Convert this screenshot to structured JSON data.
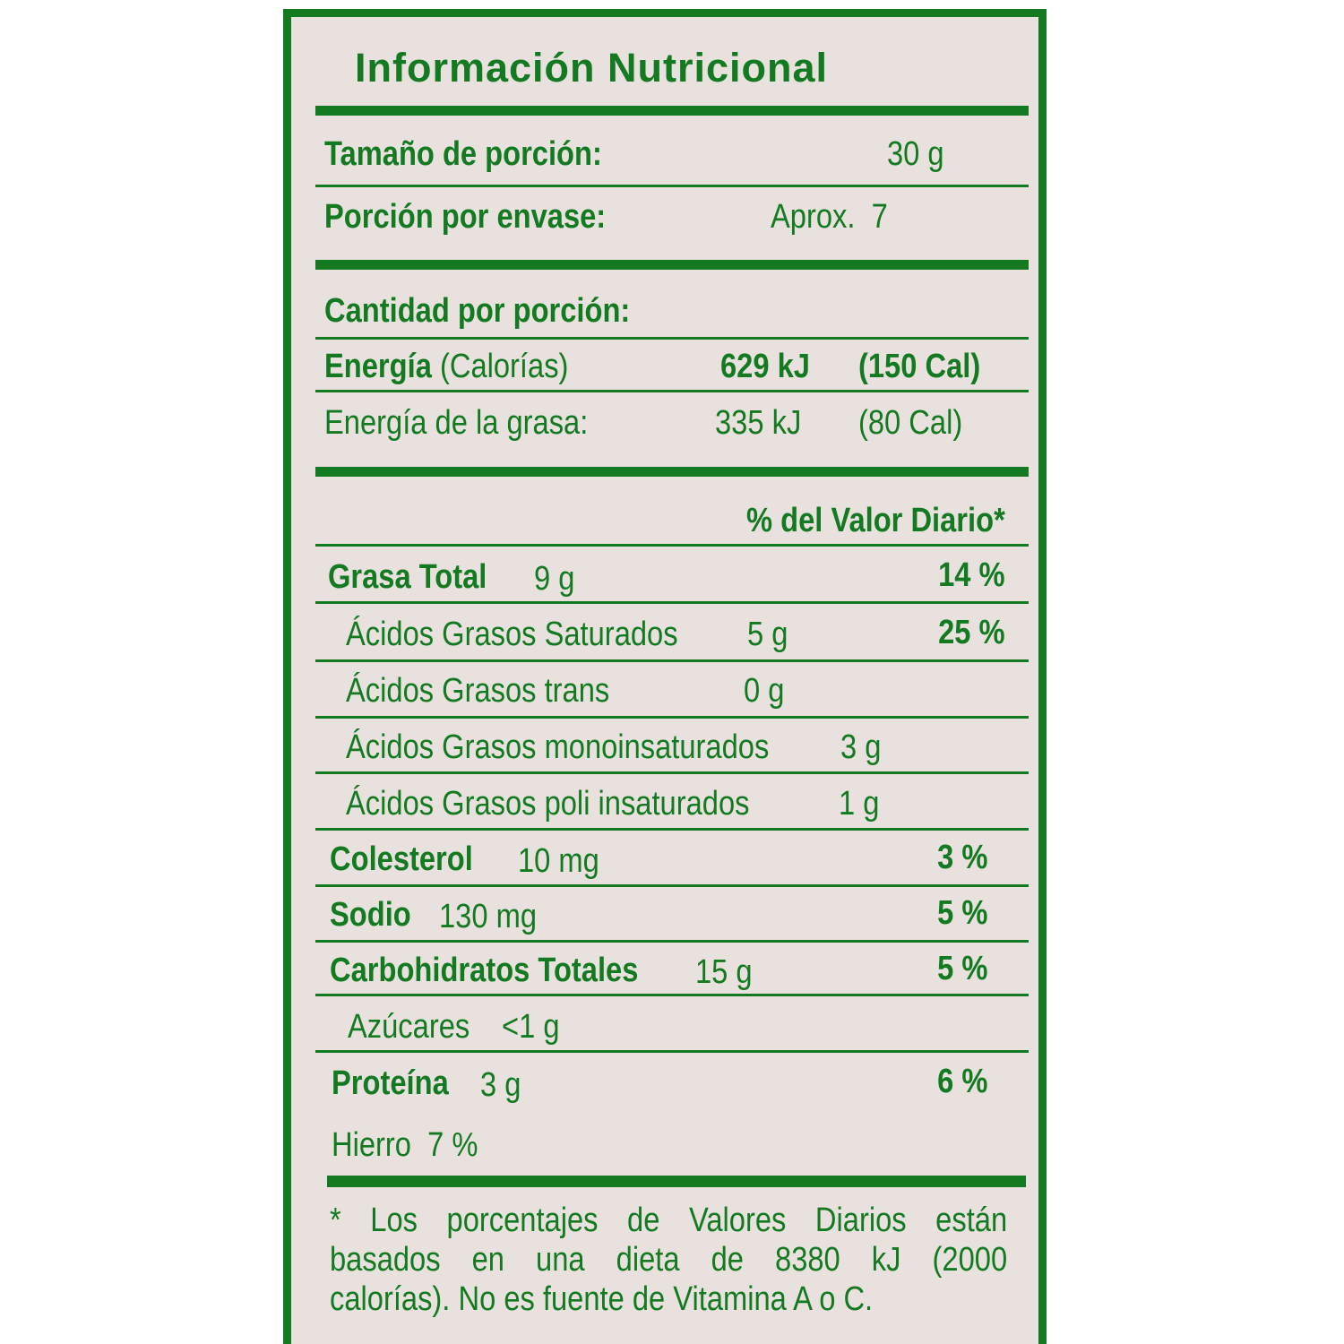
{
  "title": "Información Nutricional",
  "serving": {
    "size_label": "Tamaño de porción:",
    "size_value": "30 g",
    "per_container_label": "Porción por envase:",
    "per_container_value": "Aprox.  7"
  },
  "amount_header": "Cantidad por porción:",
  "energy": {
    "label_bold": "Energía",
    "label_sub": "(Calorías)",
    "kj": "629 kJ",
    "cal": "(150 Cal)",
    "fat_label": "Energía de la grasa:",
    "fat_kj": "335 kJ",
    "fat_cal": "(80 Cal)"
  },
  "dv_header": "% del Valor Diario*",
  "nutrients": [
    {
      "name": "Grasa Total",
      "amount": "9 g",
      "dv": "14 %"
    },
    {
      "name": "Ácidos Grasos Saturados",
      "amount": "5 g",
      "dv": "25 %"
    },
    {
      "name": "Ácidos Grasos trans",
      "amount": "0 g",
      "dv": ""
    },
    {
      "name": "Ácidos Grasos monoinsaturados",
      "amount": "3 g",
      "dv": ""
    },
    {
      "name": "Ácidos Grasos poli insaturados",
      "amount": "1 g",
      "dv": ""
    },
    {
      "name": "Colesterol",
      "amount": "10 mg",
      "dv": "3 %"
    },
    {
      "name": "Sodio",
      "amount": "130 mg",
      "dv": "5 %"
    },
    {
      "name": "Carbohidratos Totales",
      "amount": "15 g",
      "dv": "5 %"
    },
    {
      "name": "Azúcares",
      "amount": "<1 g",
      "dv": ""
    },
    {
      "name": "Proteína",
      "amount": "3 g",
      "dv": "6 %"
    }
  ],
  "iron": "Hierro  7 %",
  "footnote": [
    "* Los porcentajes de Valores Diarios están",
    "basados en una dieta de 8380 kJ (2000",
    "calorías). No es fuente de Vitamina A o C."
  ],
  "colors": {
    "green": "#137a22",
    "background": "#e9e1dd"
  }
}
